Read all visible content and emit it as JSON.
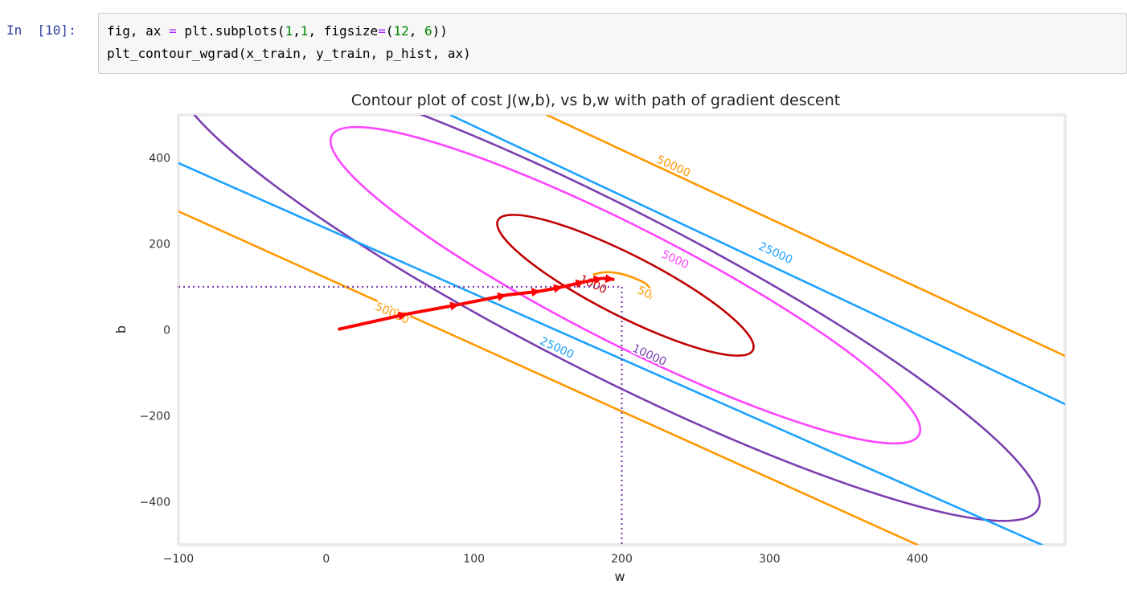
{
  "cell": {
    "prompt": "In  [10]:",
    "code": {
      "line1": {
        "a": "fig, ax ",
        "eq": "=",
        "b": " plt.subplots(",
        "n1": "1",
        "c1": ",",
        "n2": "1",
        "c2": ", figsize",
        "eq2": "=",
        "c3": "(",
        "n3": "12",
        "c4": ", ",
        "n4": "6",
        "c5": "))"
      },
      "line2": "plt_contour_wgrad(x_train, y_train, p_hist, ax)"
    }
  },
  "chart_data": {
    "type": "contour",
    "title": "Contour plot of cost J(w,b), vs b,w with path of gradient descent",
    "xlabel": "w",
    "ylabel": "b",
    "xlim": [
      -100,
      500
    ],
    "ylim": [
      -500,
      500
    ],
    "xticks": [
      "−100",
      "0",
      "100",
      "200",
      "300",
      "400"
    ],
    "yticks": [
      "400",
      "200",
      "0",
      "−200",
      "−400"
    ],
    "contour_levels": [
      {
        "level": "50000",
        "color": "#ff9800"
      },
      {
        "level": "25000",
        "color": "#1ca2ff"
      },
      {
        "level": "10000",
        "color": "#7b3fb0"
      },
      {
        "level": "5000",
        "color": "#ff44ff"
      },
      {
        "level": "1000",
        "color": "#c00000"
      },
      {
        "level": "50",
        "color": "#ff9800"
      }
    ],
    "contour_labels": [
      "50000",
      "50000",
      "25000",
      "25000",
      "10000",
      "5000",
      "1000",
      "50"
    ],
    "gradient_path": [
      [
        8,
        1
      ],
      [
        55,
        37
      ],
      [
        90,
        59
      ],
      [
        122,
        81
      ],
      [
        145,
        90
      ],
      [
        160,
        100
      ],
      [
        175,
        112
      ],
      [
        187,
        120
      ],
      [
        195,
        117
      ]
    ],
    "optimum": {
      "w": 200,
      "b": 100
    },
    "grid": false
  }
}
